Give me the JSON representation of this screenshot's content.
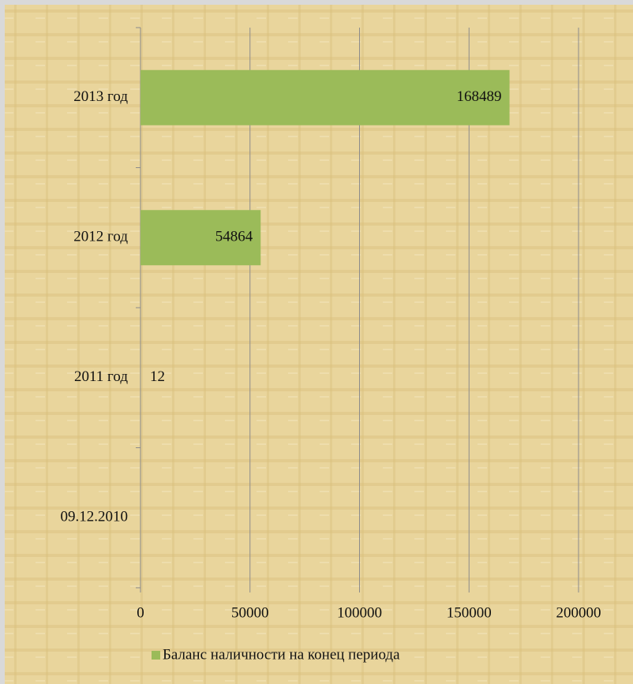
{
  "chart_data": {
    "type": "hbar",
    "categories": [
      "09.12.2010",
      "2011 год",
      "2012 год",
      "2013 год"
    ],
    "series": [
      {
        "name": "Баланс наличности на конец периода",
        "color": "#9bbb59",
        "values": [
          null,
          12,
          54864,
          168489
        ]
      }
    ],
    "xlim": [
      0,
      200000
    ],
    "xticks": [
      0,
      50000,
      100000,
      150000,
      200000
    ],
    "grid": true,
    "legend": "bottom"
  }
}
